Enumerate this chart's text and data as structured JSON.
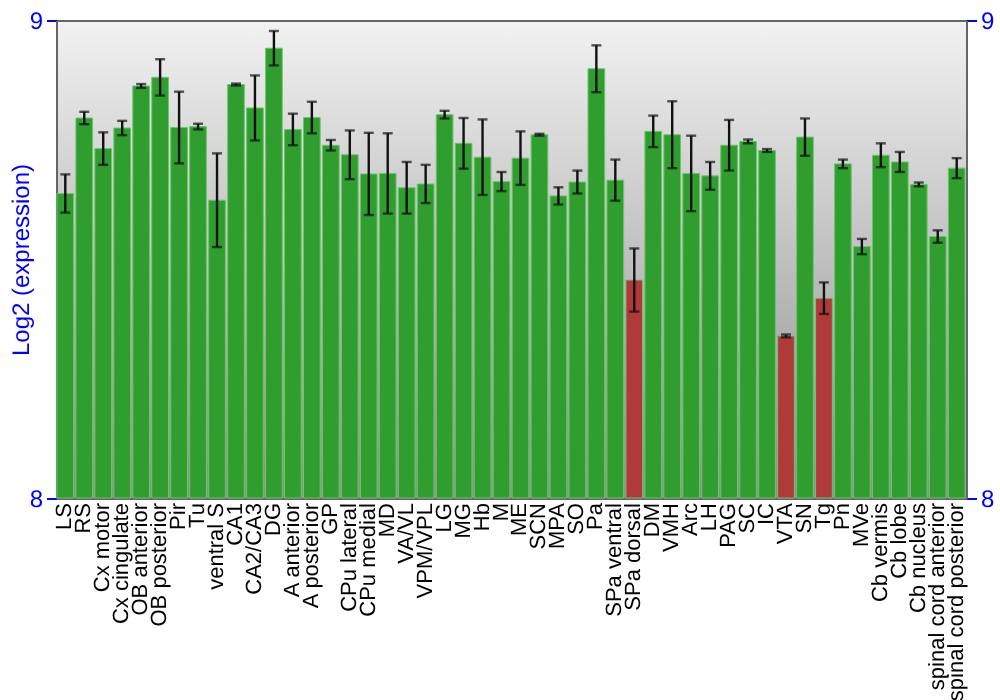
{
  "chart_data": {
    "type": "bar",
    "ylabel": "Log2 (expression)",
    "categories": [
      "LS",
      "RS",
      "Cx motor",
      "Cx cingulate",
      "OB anterior",
      "OB posterior",
      "Pir",
      "Tu",
      "ventral S",
      "CA1",
      "CA2/CA3",
      "DG",
      "A anterior",
      "A posterior",
      "GP",
      "CPu lateral",
      "CPu medial",
      "MD",
      "VA/VL",
      "VPM/VPL",
      "LG",
      "MG",
      "Hb",
      "M",
      "ME",
      "SCN",
      "MPA",
      "SO",
      "Pa",
      "SPa ventral",
      "SPa dorsal",
      "DM",
      "VMH",
      "Arc",
      "LH",
      "PAG",
      "SC",
      "IC",
      "VTA",
      "SN",
      "Tg",
      "Pn",
      "MVe",
      "Cb vermis",
      "Cb lobe",
      "Cb nucleus",
      "spinal cord anterior",
      "spinal cord posterior"
    ],
    "values": [
      8.637,
      8.795,
      8.731,
      8.774,
      8.862,
      8.88,
      8.775,
      8.777,
      8.623,
      8.865,
      8.816,
      8.941,
      8.771,
      8.796,
      8.738,
      8.718,
      8.678,
      8.679,
      8.649,
      8.657,
      8.802,
      8.742,
      8.713,
      8.662,
      8.711,
      8.76,
      8.632,
      8.661,
      8.898,
      8.665,
      8.456,
      8.767,
      8.76,
      8.679,
      8.674,
      8.738,
      8.746,
      8.727,
      8.339,
      8.755,
      8.418,
      8.699,
      8.526,
      8.717,
      8.703,
      8.656,
      8.547,
      8.69
    ],
    "errors": [
      0.04,
      0.013,
      0.034,
      0.015,
      0.004,
      0.038,
      0.075,
      0.006,
      0.098,
      0.002,
      0.068,
      0.036,
      0.033,
      0.033,
      0.011,
      0.051,
      0.086,
      0.084,
      0.054,
      0.04,
      0.008,
      0.053,
      0.079,
      0.02,
      0.056,
      0.002,
      0.018,
      0.024,
      0.049,
      0.043,
      0.066,
      0.033,
      0.07,
      0.079,
      0.029,
      0.053,
      0.004,
      0.003,
      0.003,
      0.039,
      0.033,
      0.009,
      0.016,
      0.025,
      0.021,
      0.004,
      0.013,
      0.021
    ],
    "colors": [
      "#2f9e2f",
      "#2f9e2f",
      "#2f9e2f",
      "#2f9e2f",
      "#2f9e2f",
      "#2f9e2f",
      "#2f9e2f",
      "#2f9e2f",
      "#2f9e2f",
      "#2f9e2f",
      "#2f9e2f",
      "#2f9e2f",
      "#2f9e2f",
      "#2f9e2f",
      "#2f9e2f",
      "#2f9e2f",
      "#2f9e2f",
      "#2f9e2f",
      "#2f9e2f",
      "#2f9e2f",
      "#2f9e2f",
      "#2f9e2f",
      "#2f9e2f",
      "#2f9e2f",
      "#2f9e2f",
      "#2f9e2f",
      "#2f9e2f",
      "#2f9e2f",
      "#2f9e2f",
      "#2f9e2f",
      "#b03a3a",
      "#2f9e2f",
      "#2f9e2f",
      "#2f9e2f",
      "#2f9e2f",
      "#2f9e2f",
      "#2f9e2f",
      "#2f9e2f",
      "#b03a3a",
      "#2f9e2f",
      "#b03a3a",
      "#2f9e2f",
      "#2f9e2f",
      "#2f9e2f",
      "#2f9e2f",
      "#2f9e2f",
      "#2f9e2f",
      "#2f9e2f"
    ],
    "ylim": [
      8,
      9
    ],
    "yticks": [
      8,
      9
    ],
    "y2lim": [
      8,
      9
    ],
    "y2ticks": [
      8,
      9
    ]
  }
}
